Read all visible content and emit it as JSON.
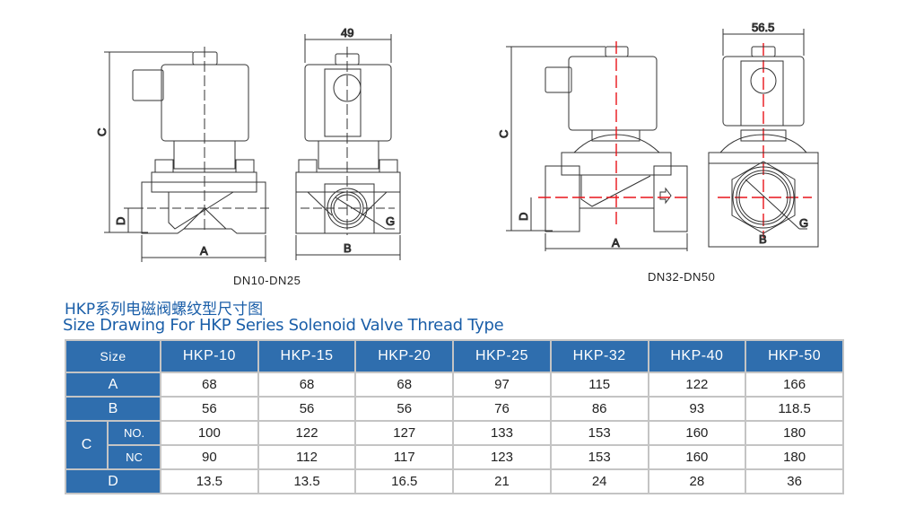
{
  "drawings": {
    "small": {
      "caption": "DN10-DN25",
      "labels": {
        "a": "A",
        "b": "B",
        "c": "C",
        "d": "D",
        "g": "G",
        "width": "49"
      }
    },
    "large": {
      "caption": "DN32-DN50",
      "labels": {
        "a": "A",
        "b": "B",
        "c": "C",
        "d": "D",
        "g": "G",
        "width": "56.5"
      }
    }
  },
  "title": {
    "cn": "HKP系列电磁阀螺纹型尺寸图",
    "en": "Size Drawing For HKP Series Solenoid Valve Thread Type"
  },
  "table": {
    "size_label": "Size",
    "models": [
      "HKP-10",
      "HKP-15",
      "HKP-20",
      "HKP-25",
      "HKP-32",
      "HKP-40",
      "HKP-50"
    ],
    "rows": {
      "A": {
        "label": "A",
        "values": [
          "68",
          "68",
          "68",
          "97",
          "115",
          "122",
          "166"
        ]
      },
      "B": {
        "label": "B",
        "values": [
          "56",
          "56",
          "56",
          "76",
          "86",
          "93",
          "118.5"
        ]
      },
      "C": {
        "label": "C",
        "NO": {
          "label": "NO.",
          "values": [
            "100",
            "122",
            "127",
            "133",
            "153",
            "160",
            "180"
          ]
        },
        "NC": {
          "label": "NC",
          "values": [
            "90",
            "112",
            "117",
            "123",
            "153",
            "160",
            "180"
          ]
        }
      },
      "D": {
        "label": "D",
        "values": [
          "13.5",
          "13.5",
          "16.5",
          "21",
          "24",
          "28",
          "36"
        ]
      }
    }
  },
  "colors": {
    "header_bg": "#2f6eae",
    "title": "#1a5ea8",
    "centerline_large": "#e8151b",
    "grid": "#c4c4c4"
  }
}
